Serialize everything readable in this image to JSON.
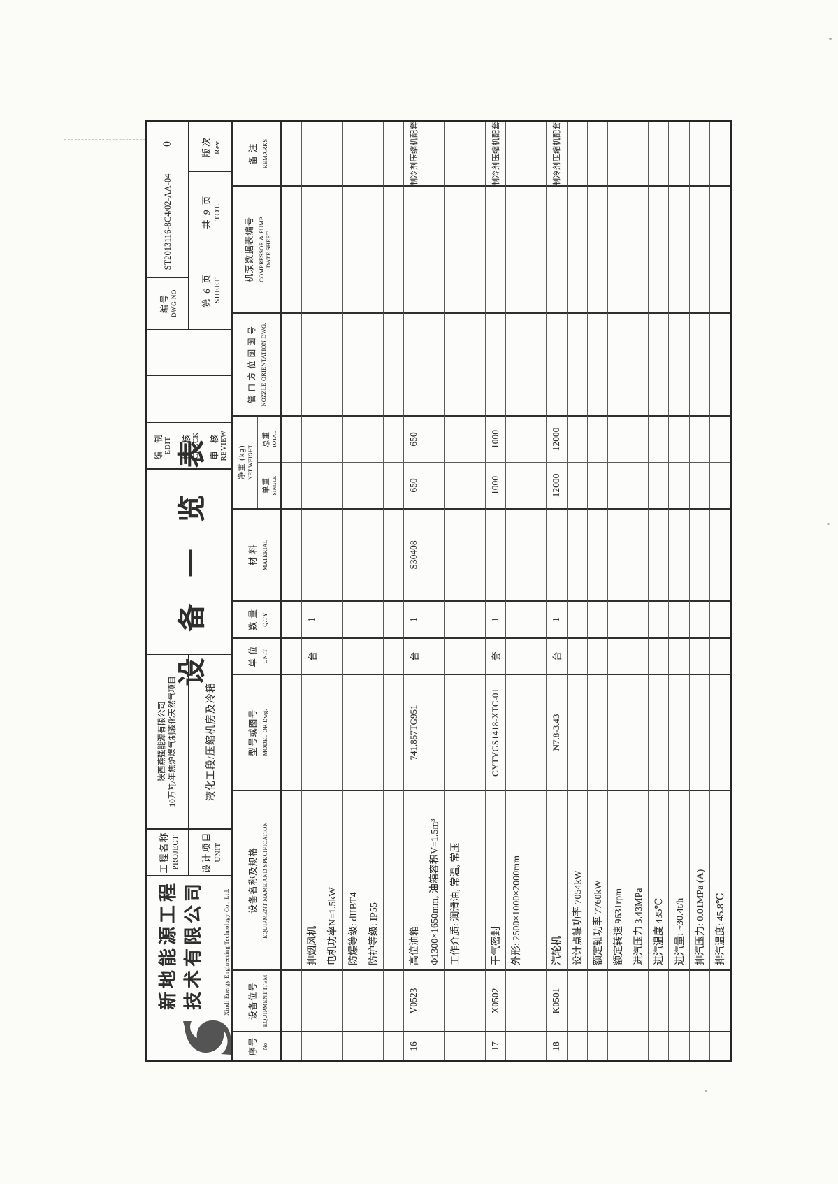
{
  "style": {
    "ink": "#2e2e2e",
    "paper": "#fbfbf8",
    "grid_heavy": "#2f2f2f",
    "grid_light": "#5a5a5a"
  },
  "title_block": {
    "company": {
      "name_line1": "新地能源工程",
      "name_line2": "技术有限公司",
      "english": "Xindi Energy Engineering Technology Co., Ltd.",
      "logo": "swirl-logo"
    },
    "project": {
      "label_cn": "工程名称",
      "label_en": "PROJECT",
      "value_line1": "陕西燕强能源有限公司",
      "value_line2": "10万吨/年焦炉煤气制液化天然气项目"
    },
    "unit": {
      "label_cn": "设计项目",
      "label_en": "UNIT",
      "value": "液化工段/压缩机房及冷箱"
    },
    "sheet_title": "设 备 一 览 表",
    "signoff": [
      {
        "cn": "编 制",
        "en": "EDIT"
      },
      {
        "cn": "校 核",
        "en": "CHECK"
      },
      {
        "cn": "审 核",
        "en": "REVIEW"
      }
    ],
    "dwg_no": {
      "label_cn": "编号",
      "label_en": "DWG NO",
      "value": "ST2013116-8C4/02-AA-04"
    },
    "rev_value": "0",
    "sheet": {
      "prefix": "第",
      "num": "6",
      "suffix": "页",
      "en": "SHEET"
    },
    "total": {
      "prefix": "共",
      "num": "9",
      "suffix": "页",
      "en": "TOT."
    },
    "rev_label": {
      "cn": "版次",
      "en": "Rev."
    }
  },
  "table": {
    "columns": [
      {
        "cn": "序号",
        "en": "No"
      },
      {
        "cn": "设备位号",
        "en": "EQUIPMENT ITEM"
      },
      {
        "cn": "设备名称及规格",
        "en": "EQUIPMENT NAME AND SPECIFICATION"
      },
      {
        "cn": "型号或图号",
        "en": "MODEL OR Dwg."
      },
      {
        "cn": "单 位",
        "en": "UNIT"
      },
      {
        "cn": "数 量",
        "en": "Q.TY"
      },
      {
        "cn": "材  料",
        "en": "MATERIAL"
      },
      {
        "cn": "净重 (kg)",
        "en": "NET WEIGHT",
        "sub": [
          {
            "cn": "单重",
            "en": "SINGLE"
          },
          {
            "cn": "总重",
            "en": "TOTAL"
          }
        ]
      },
      {
        "cn": "管 口 方 位 图 图 号",
        "en": "NOZZLE ORIENTATION DWG."
      },
      {
        "cn": "机泵数据表编号",
        "en": "COMPRESSOR & PUMP DATE SHEET"
      },
      {
        "cn": "备  注",
        "en": "REMARKS"
      }
    ],
    "rows": [
      [
        "",
        "",
        "",
        "",
        "",
        "",
        "",
        "",
        "",
        "",
        "",
        ""
      ],
      [
        "",
        "",
        "排烟风机",
        "",
        "台",
        "1",
        "",
        "",
        "",
        "",
        "",
        ""
      ],
      [
        "",
        "",
        "电机功率N=1.5kW",
        "",
        "",
        "",
        "",
        "",
        "",
        "",
        "",
        ""
      ],
      [
        "",
        "",
        "防爆等级: dIIBT4",
        "",
        "",
        "",
        "",
        "",
        "",
        "",
        "",
        ""
      ],
      [
        "",
        "",
        "防护等级: IP55",
        "",
        "",
        "",
        "",
        "",
        "",
        "",
        "",
        ""
      ],
      [
        "",
        "",
        "",
        "",
        "",
        "",
        "",
        "",
        "",
        "",
        "",
        ""
      ],
      [
        "16",
        "V0523",
        "高位油箱",
        "741.857TG951",
        "台",
        "1",
        "S30408",
        "650",
        "650",
        "",
        "",
        "制冷剂压缩机配套"
      ],
      [
        "",
        "",
        "Φ1300×1650mm, 油箱容积V=1.5m³",
        "",
        "",
        "",
        "",
        "",
        "",
        "",
        "",
        ""
      ],
      [
        "",
        "",
        "工作介质: 润滑油, 常温, 常压",
        "",
        "",
        "",
        "",
        "",
        "",
        "",
        "",
        ""
      ],
      [
        "",
        "",
        "",
        "",
        "",
        "",
        "",
        "",
        "",
        "",
        "",
        ""
      ],
      [
        "17",
        "X0502",
        "干气密封",
        "CYTYGS1418-XTC-01",
        "套",
        "1",
        "",
        "1000",
        "1000",
        "",
        "",
        "制冷剂压缩机配套"
      ],
      [
        "",
        "",
        "外形: 2500×1000×2000mm",
        "",
        "",
        "",
        "",
        "",
        "",
        "",
        "",
        ""
      ],
      [
        "",
        "",
        "",
        "",
        "",
        "",
        "",
        "",
        "",
        "",
        "",
        ""
      ],
      [
        "18",
        "K0501",
        "汽轮机",
        "N7.8-3.43",
        "台",
        "1",
        "",
        "12000",
        "12000",
        "",
        "",
        "制冷剂压缩机配套"
      ],
      [
        "",
        "",
        "设计点轴功率 7054kW",
        "",
        "",
        "",
        "",
        "",
        "",
        "",
        "",
        ""
      ],
      [
        "",
        "",
        "额定轴功率 7760kW",
        "",
        "",
        "",
        "",
        "",
        "",
        "",
        "",
        ""
      ],
      [
        "",
        "",
        "额定转速 9631rpm",
        "",
        "",
        "",
        "",
        "",
        "",
        "",
        "",
        ""
      ],
      [
        "",
        "",
        "进汽压力 3.43MPa",
        "",
        "",
        "",
        "",
        "",
        "",
        "",
        "",
        ""
      ],
      [
        "",
        "",
        "进汽温度 435℃",
        "",
        "",
        "",
        "",
        "",
        "",
        "",
        "",
        ""
      ],
      [
        "",
        "",
        "进汽量: ~30.4t/h",
        "",
        "",
        "",
        "",
        "",
        "",
        "",
        "",
        ""
      ],
      [
        "",
        "",
        "排汽压力: 0.01MPa (A)",
        "",
        "",
        "",
        "",
        "",
        "",
        "",
        "",
        ""
      ],
      [
        "",
        "",
        "排汽温度: 45.8℃",
        "",
        "",
        "",
        "",
        "",
        "",
        "",
        "",
        ""
      ]
    ]
  }
}
